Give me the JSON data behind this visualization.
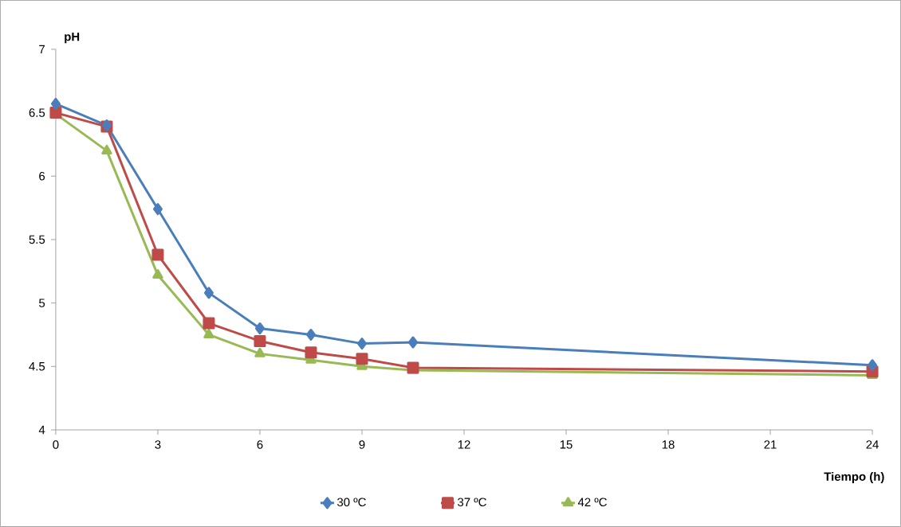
{
  "chart_data": {
    "type": "line",
    "xlabel": "Tiempo (h)",
    "ylabel": "pH",
    "x": [
      0,
      1.5,
      3,
      4.5,
      6,
      7.5,
      9,
      10.5,
      24
    ],
    "series": [
      {
        "name": "30 ºC",
        "color": "#4a7ebb",
        "marker": "diamond",
        "values": [
          6.57,
          6.4,
          5.74,
          5.08,
          4.8,
          4.75,
          4.68,
          4.69,
          4.51
        ]
      },
      {
        "name": "37 ºC",
        "color": "#be4b48",
        "marker": "square",
        "values": [
          6.5,
          6.39,
          5.38,
          4.84,
          4.7,
          4.61,
          4.56,
          4.49,
          4.46
        ]
      },
      {
        "name": "42 ºC",
        "color": "#98b954",
        "marker": "triangle",
        "values": [
          6.49,
          6.2,
          5.22,
          4.75,
          4.6,
          4.55,
          4.5,
          4.47,
          4.43
        ]
      }
    ],
    "xlim": [
      0,
      24
    ],
    "xticks": [
      0,
      3,
      6,
      9,
      12,
      15,
      18,
      21,
      24
    ],
    "ylim": [
      4,
      7
    ],
    "yticks": [
      4,
      4.5,
      5,
      5.5,
      6,
      6.5,
      7
    ],
    "grid": false,
    "legend": "bottom",
    "line_style": "solid"
  }
}
